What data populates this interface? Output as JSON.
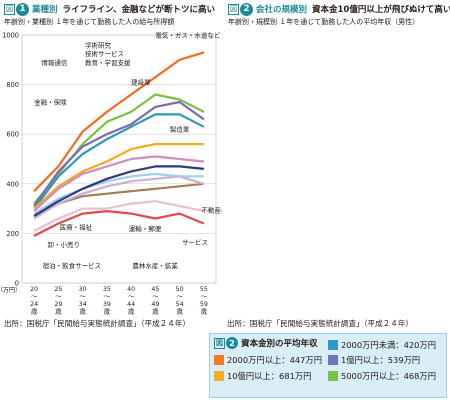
{
  "chart_data": [
    {
      "type": "line",
      "badge_fig": "図",
      "badge_num": "1",
      "label": "業種別",
      "title": "ライフライン、金融などが断トツに高い",
      "subtitle": "年齢別・業種別 １年を通じて勤務した人の給与所得額",
      "yunit": "（万円）",
      "ylim": [
        0,
        1000
      ],
      "yticks": [
        "0",
        "200",
        "400",
        "600",
        "800",
        "1000"
      ],
      "categories": [
        "20〜24歳",
        "25〜29歳",
        "30〜34歳",
        "35〜39歳",
        "40〜44歳",
        "45〜49歳",
        "50〜54歳",
        "55〜59歳"
      ],
      "cat_labels": [
        [
          "20",
          "〜",
          "24",
          "歳"
        ],
        [
          "25",
          "〜",
          "29",
          "歳"
        ],
        [
          "30",
          "〜",
          "34",
          "歳"
        ],
        [
          "35",
          "〜",
          "39",
          "歳"
        ],
        [
          "40",
          "〜",
          "44",
          "歳"
        ],
        [
          "45",
          "〜",
          "49",
          "歳"
        ],
        [
          "50",
          "〜",
          "54",
          "歳"
        ],
        [
          "55",
          "〜",
          "59",
          "歳"
        ]
      ],
      "series": [
        {
          "name": "電気・ガス・水道など",
          "color": "#f26b21",
          "values": [
            370,
            470,
            610,
            690,
            760,
            830,
            900,
            930
          ]
        },
        {
          "name": "金融・保険",
          "color": "#7ac143",
          "values": [
            320,
            440,
            560,
            650,
            690,
            760,
            740,
            690
          ]
        },
        {
          "name": "情報通信",
          "color": "#7f6aaf",
          "values": [
            310,
            450,
            550,
            600,
            640,
            710,
            730,
            660
          ]
        },
        {
          "name": "学術研究 技術サービス 教育・学習支援",
          "color": "#2b9ab8",
          "values": [
            300,
            430,
            520,
            580,
            630,
            680,
            680,
            630
          ]
        },
        {
          "name": "建設業",
          "color": "#f7a823",
          "values": [
            300,
            390,
            450,
            490,
            540,
            560,
            560,
            560
          ]
        },
        {
          "name": "製造業",
          "color": "#cf8ec1",
          "values": [
            290,
            380,
            440,
            470,
            500,
            510,
            500,
            490
          ]
        },
        {
          "name": "運輸・郵便",
          "color": "#a3cfe4",
          "values": [
            280,
            340,
            380,
            410,
            430,
            440,
            430,
            430
          ]
        },
        {
          "name": "医療・福祉",
          "color": "#a67c52",
          "values": [
            270,
            320,
            350,
            360,
            370,
            380,
            390,
            400
          ]
        },
        {
          "name": "卸・小売り",
          "color": "#c5b3d8",
          "values": [
            260,
            320,
            360,
            390,
            410,
            420,
            430,
            400
          ]
        },
        {
          "name": "不動産ほか",
          "color": "#2f3a7c",
          "values": [
            270,
            330,
            380,
            420,
            450,
            470,
            470,
            460
          ]
        },
        {
          "name": "サービス",
          "color": "#e9c0cd",
          "values": [
            210,
            260,
            300,
            300,
            320,
            330,
            310,
            290
          ]
        },
        {
          "name": "宿泊・飲食サービス",
          "color": "#e2484e",
          "values": [
            190,
            240,
            280,
            290,
            280,
            260,
            280,
            240
          ]
        }
      ],
      "annotations": [
        {
          "text": "電気・ガス・水道など",
          "i": 5.0,
          "v": 990
        },
        {
          "text": "学術研究",
          "i": 2.1,
          "v": 950
        },
        {
          "text": "技術サービス",
          "i": 2.1,
          "v": 915
        },
        {
          "text": "教育・学習支援",
          "i": 2.1,
          "v": 880
        },
        {
          "text": "情報通信",
          "i": 0.3,
          "v": 880
        },
        {
          "text": "建設業",
          "i": 4.0,
          "v": 800
        },
        {
          "text": "金融・保険",
          "i": 0.0,
          "v": 720
        },
        {
          "text": "製造業",
          "i": 5.6,
          "v": 610
        },
        {
          "text": "不動産ほか",
          "i": 6.9,
          "v": 285
        },
        {
          "text": "医療・福祉",
          "i": 1.05,
          "v": 215
        },
        {
          "text": "運輸・郵便",
          "i": 3.9,
          "v": 210
        },
        {
          "text": "サービス",
          "i": 6.1,
          "v": 155
        },
        {
          "text": "卸・小売り",
          "i": 0.55,
          "v": 145
        },
        {
          "text": "宿泊・飲食サービス",
          "i": 0.35,
          "v": 60
        },
        {
          "text": "農林水産・鉱業",
          "i": 4.05,
          "v": 60
        }
      ],
      "source": "出所：国税庁「民間給与実態統計調査」（平成２４年）"
    },
    {
      "type": "bar",
      "badge_fig": "図",
      "badge_num": "2",
      "label": "会社の規模別",
      "title": "資本金10億円以上が飛びぬけて高い",
      "subtitle": "年齢別・規模別 １年を通じて勤務した人の平均年収（男性）",
      "yunit": "（万円）",
      "ylim": [
        0,
        1000
      ],
      "yticks": [
        "0",
        "200",
        "400",
        "600",
        "800",
        "1000"
      ],
      "categories": [
        "20〜24歳",
        "25〜29歳",
        "30〜34歳",
        "35〜39歳",
        "40〜44歳",
        "45〜49歳",
        "50〜54歳",
        "55〜59歳"
      ],
      "cat_labels": [
        [
          "20",
          "〜",
          "24",
          "歳"
        ],
        [
          "25",
          "〜",
          "29",
          "歳"
        ],
        [
          "30",
          "〜",
          "34",
          "歳"
        ],
        [
          "35",
          "〜",
          "39",
          "歳"
        ],
        [
          "40",
          "〜",
          "44",
          "歳"
        ],
        [
          "45",
          "〜",
          "49",
          "歳"
        ],
        [
          "50",
          "〜",
          "54",
          "歳"
        ],
        [
          "55",
          "〜",
          "59",
          "歳"
        ]
      ],
      "series": [
        {
          "name": "2000万円未満",
          "color": "#2e98cc",
          "values": [
            230,
            320,
            370,
            430,
            460,
            490,
            500,
            490
          ]
        },
        {
          "name": "2000万円以上",
          "color": "#f27d26",
          "values": [
            260,
            350,
            400,
            460,
            510,
            520,
            530,
            530
          ]
        },
        {
          "name": "1億円以上",
          "color": "#6c75b5",
          "values": [
            270,
            390,
            460,
            520,
            600,
            650,
            680,
            690
          ]
        },
        {
          "name": "5000万円以上",
          "color": "#7cc24a",
          "values": [
            270,
            370,
            420,
            480,
            550,
            580,
            610,
            570
          ]
        },
        {
          "name": "10億円以上",
          "color": "#f6ac24",
          "values": [
            300,
            450,
            560,
            640,
            740,
            830,
            880,
            860
          ]
        }
      ],
      "legend_title": "資本金別の平均年収",
      "legend_items": [
        {
          "label": "2000万円未満：420万円",
          "color": "#2e98cc"
        },
        {
          "label": "2000万円以上：447万円",
          "color": "#f27d26"
        },
        {
          "label": "1億円以上：539万円",
          "color": "#6c75b5"
        },
        {
          "label": "10億円以上：681万円",
          "color": "#f6ac24"
        },
        {
          "label": "5000万円以上：468万円",
          "color": "#7cc24a"
        }
      ],
      "source": "出所：国税庁「民間給与実態統計調査」（平成２４年）"
    }
  ]
}
